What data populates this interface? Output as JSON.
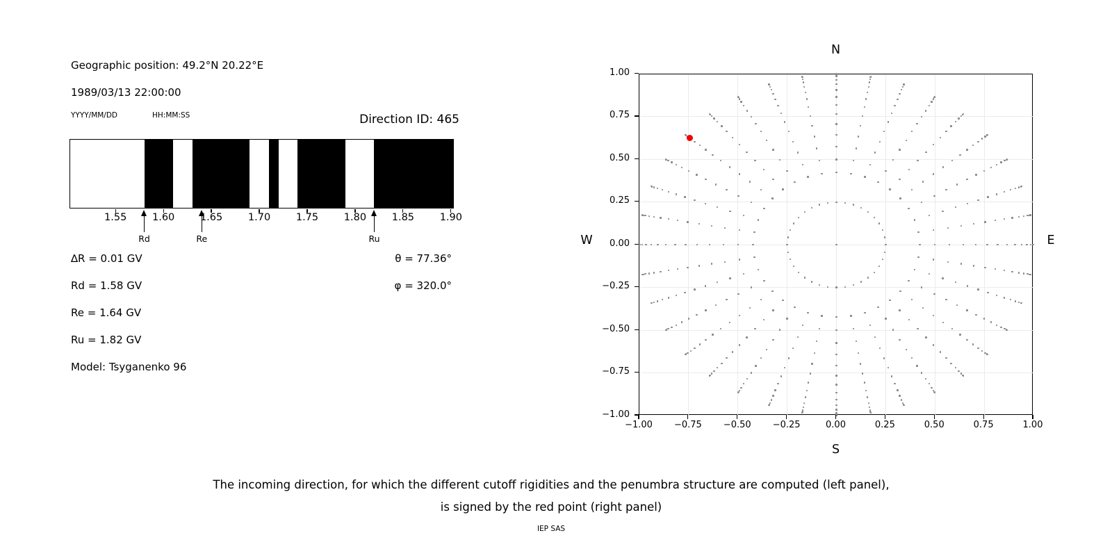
{
  "left_panel": {
    "geo_position": "Geographic position: 49.2°N 20.22°E",
    "datetime": "1989/03/13 22:00:00",
    "date_format_label": "YYYY/MM/DD",
    "time_format_label": "HH:MM:SS",
    "direction_id": "Direction ID: 465",
    "values": {
      "delta_r": "∆R = 0.01 GV",
      "rd": "Rd = 1.58 GV",
      "re": "Re = 1.64 GV",
      "ru": "Ru = 1.82 GV",
      "model": "Model: Tsyganenko 96",
      "theta": "θ = 77.36°",
      "phi": "φ = 320.0°"
    }
  },
  "caption": {
    "line1": "The incoming direction, for which the different cutoff rigidities and the penumbra structure are computed (left panel),",
    "line2": "is signed by the red point (right panel)",
    "credit": "IEP SAS"
  },
  "chart_data": [
    {
      "type": "bar",
      "name": "penumbra-structure-barcode",
      "title": "Direction ID: 465",
      "xlim": [
        1.502,
        1.903
      ],
      "xticks": {
        "values": [
          1.55,
          1.6,
          1.65,
          1.7,
          1.75,
          1.8,
          1.85,
          1.9
        ],
        "labels": [
          "1.55",
          "1.60",
          "1.65",
          "1.70",
          "1.75",
          "1.80",
          "1.85",
          "1.90"
        ]
      },
      "band_color": "#000000",
      "background_color": "#ffffff",
      "black_bands_gv": [
        [
          1.58,
          1.61
        ],
        [
          1.63,
          1.69
        ],
        [
          1.71,
          1.72
        ],
        [
          1.74,
          1.79
        ],
        [
          1.82,
          1.903
        ]
      ],
      "markers": [
        {
          "label": "Rd",
          "value_gv": 1.58
        },
        {
          "label": "Re",
          "value_gv": 1.64
        },
        {
          "label": "Ru",
          "value_gv": 1.82
        }
      ]
    },
    {
      "type": "scatter",
      "name": "incoming-direction-map",
      "xlim": [
        -1,
        1
      ],
      "ylim": [
        -1,
        1
      ],
      "grid": true,
      "grid_color": "#ebebeb",
      "xticks": {
        "values": [
          -1.0,
          -0.75,
          -0.5,
          -0.25,
          0.0,
          0.25,
          0.5,
          0.75,
          1.0
        ],
        "labels": [
          "−1.00",
          "−0.75",
          "−0.50",
          "−0.25",
          "0.00",
          "0.25",
          "0.50",
          "0.75",
          "1.00"
        ]
      },
      "yticks": {
        "values": [
          1.0,
          0.75,
          0.5,
          0.25,
          0.0,
          -0.25,
          -0.5,
          -0.75,
          -1.0
        ],
        "labels": [
          "1.00",
          "0.75",
          "0.50",
          "0.25",
          "0.00",
          "−0.25",
          "−0.50",
          "−0.75",
          "−1.00"
        ]
      },
      "compass_labels": {
        "top": "N",
        "right": "E",
        "bottom": "S",
        "left": "W"
      },
      "direction_grid": {
        "azimuth_start_deg": 0,
        "azimuth_step_deg": 10,
        "azimuth_count": 36,
        "radii": [
          0.25,
          0.423,
          0.5,
          0.574,
          0.643,
          0.707,
          0.766,
          0.819,
          0.866,
          0.906,
          0.94,
          0.966,
          0.985,
          0.996,
          1.0
        ],
        "center_point": true,
        "point_color": "#8a8a8a"
      },
      "red_point": {
        "x": -0.743,
        "y": 0.624,
        "color": "#f20000"
      }
    }
  ]
}
